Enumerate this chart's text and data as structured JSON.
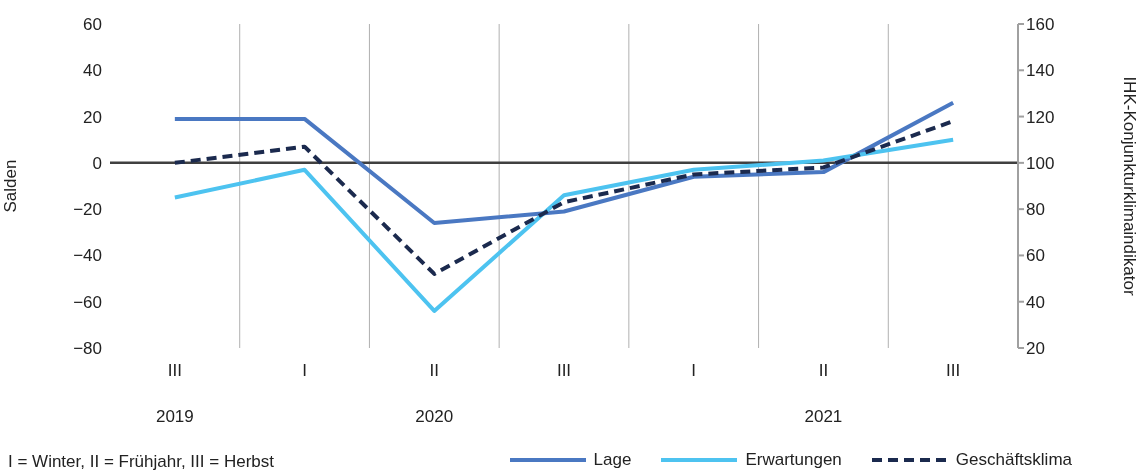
{
  "chart_data": {
    "type": "line",
    "ylabel": "Salden",
    "y2label": "IHK-Konjunkturklimaindikator",
    "categories": [
      "III\n2019",
      "I",
      "II\n2020",
      "III",
      "I",
      "II\n2021",
      "III"
    ],
    "series": [
      {
        "name": "Lage",
        "color": "#4a78c2",
        "line_style": "solid",
        "values": [
          19,
          19,
          -26,
          -21,
          -6,
          -4,
          26
        ]
      },
      {
        "name": "Erwartungen",
        "color": "#4dc3f0",
        "line_style": "solid",
        "values": [
          -15,
          -3,
          -64,
          -14,
          -3,
          1,
          10
        ]
      },
      {
        "name": "Geschäftsklima",
        "color": "#1b2a4e",
        "line_style": "dashed",
        "axis": "y2",
        "values": [
          100,
          107,
          52,
          83,
          95,
          98,
          118
        ]
      }
    ],
    "ylim": [
      -80,
      60
    ],
    "yticks": [
      -80,
      -60,
      -40,
      -20,
      0,
      20,
      40,
      60
    ],
    "y2lim": [
      20,
      160
    ],
    "y2ticks": [
      20,
      40,
      60,
      80,
      100,
      120,
      140,
      160
    ],
    "ref_lines": [
      {
        "axis": "y",
        "value": 0,
        "color": "#404040"
      }
    ],
    "grid": "x",
    "legend": "bottom right",
    "marker": "none",
    "annotations": [
      "I = Winter, II = Frühjahr, III = Herbst"
    ]
  }
}
